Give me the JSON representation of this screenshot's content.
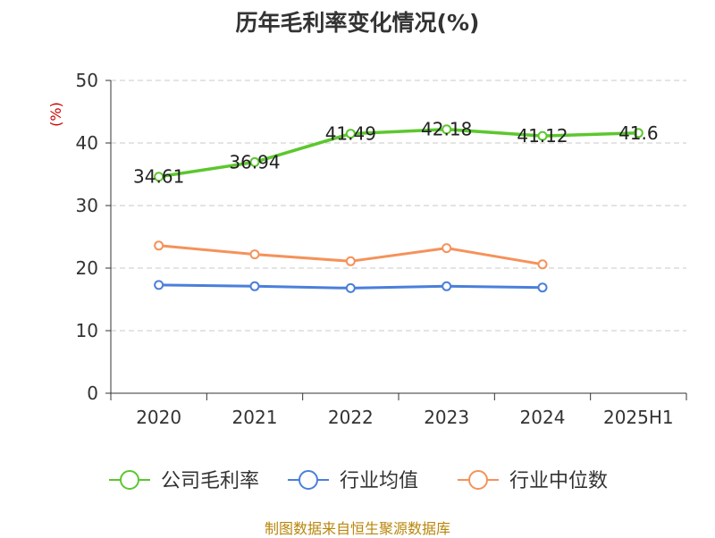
{
  "chart_data": {
    "type": "line",
    "title": "历年毛利率变化情况(%)",
    "ylabel": "(%)",
    "xlabel": "",
    "ylim": [
      0,
      50
    ],
    "yticks": [
      0,
      10,
      20,
      30,
      40,
      50
    ],
    "categories": [
      "2020",
      "2021",
      "2022",
      "2023",
      "2024",
      "2025H1"
    ],
    "grid": true,
    "legend_position": "bottom",
    "series": [
      {
        "name": "公司毛利率",
        "color": "#5cc72e",
        "values": [
          34.61,
          36.94,
          41.49,
          42.18,
          41.12,
          41.6
        ],
        "labels": [
          "34.61",
          "36.94",
          "41.49",
          "42.18",
          "41.12",
          "41.6"
        ]
      },
      {
        "name": "行业均值",
        "color": "#4a7fdb",
        "values": [
          17.3,
          17.1,
          16.8,
          17.1,
          16.9,
          null
        ]
      },
      {
        "name": "行业中位数",
        "color": "#f5925a",
        "values": [
          23.6,
          22.2,
          21.1,
          23.2,
          20.6,
          null
        ]
      }
    ]
  },
  "footer": "制图数据来自恒生聚源数据库"
}
